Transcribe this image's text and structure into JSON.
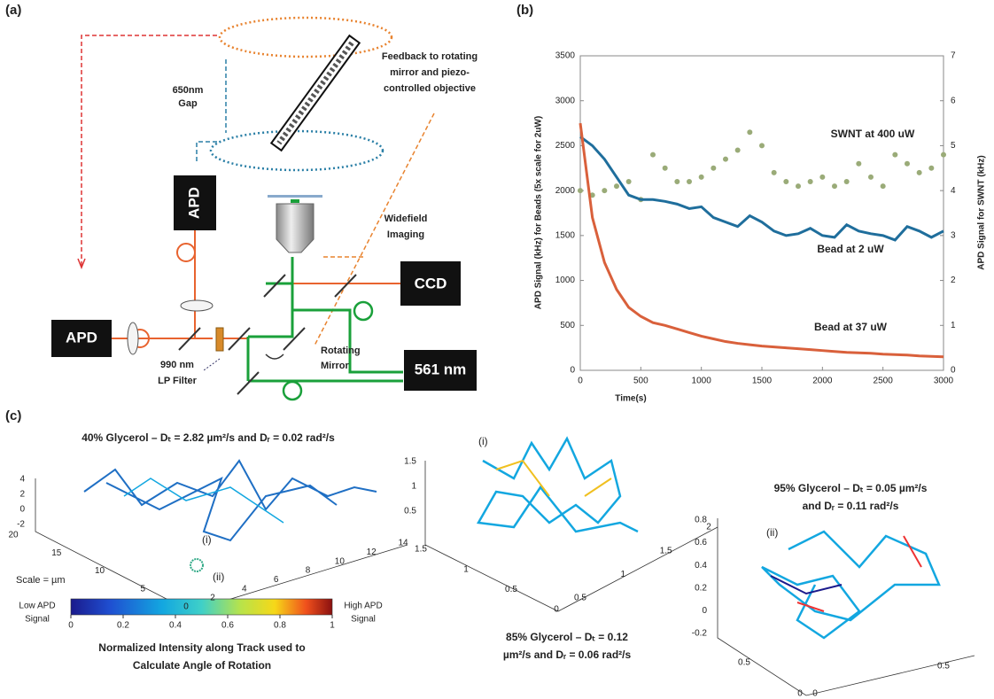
{
  "panels": {
    "a": "(a)",
    "b": "(b)",
    "c": "(c)"
  },
  "diagram": {
    "gap": [
      "650nm",
      "Gap"
    ],
    "feedback": [
      "Feedback to rotating",
      "mirror and piezo-",
      "controlled objective"
    ],
    "apd_top": "APD",
    "apd_left": "APD",
    "widefield": [
      "Widefield",
      "Imaging"
    ],
    "ccd": "CCD",
    "rotating": [
      "Rotating",
      "Mirror"
    ],
    "laser": "561 nm",
    "filter": [
      "990 nm",
      "LP Filter"
    ]
  },
  "chart_data": {
    "type": "line",
    "xlabel": "Time(s)",
    "ylabel": "APD Signal (kHz) for Beads (5x scale for 2uW)",
    "y2label": "APD Signal for SWNT (kHz)",
    "x": [
      0,
      100,
      200,
      300,
      400,
      500,
      600,
      700,
      800,
      900,
      1000,
      1100,
      1200,
      1300,
      1400,
      1500,
      1600,
      1700,
      1800,
      1900,
      2000,
      2100,
      2200,
      2300,
      2400,
      2500,
      2600,
      2700,
      2800,
      2900,
      3000
    ],
    "xlim": [
      0,
      3000
    ],
    "xticks": [
      0,
      500,
      1000,
      1500,
      2000,
      2500,
      3000
    ],
    "ylim": [
      0,
      3500
    ],
    "yticks": [
      0,
      500,
      1000,
      1500,
      2000,
      2500,
      3000,
      3500
    ],
    "y2lim": [
      0,
      7
    ],
    "y2ticks": [
      0,
      1,
      2,
      3,
      4,
      5,
      6,
      7
    ],
    "series": [
      {
        "name": "SWNT at 400 uW",
        "color": "#9aab78",
        "axis": "y2",
        "marker": "dots",
        "values": [
          4.0,
          3.9,
          4.0,
          4.1,
          4.2,
          3.8,
          4.8,
          4.5,
          4.2,
          4.2,
          4.3,
          4.5,
          4.7,
          4.9,
          5.3,
          5.0,
          4.4,
          4.2,
          4.1,
          4.2,
          4.3,
          4.1,
          4.2,
          4.6,
          4.3,
          4.1,
          4.8,
          4.6,
          4.4,
          4.5,
          4.8
        ]
      },
      {
        "name": "Bead at 2 uW",
        "color": "#1f6e9c",
        "values": [
          2600,
          2500,
          2350,
          2150,
          1950,
          1900,
          1900,
          1880,
          1850,
          1800,
          1820,
          1700,
          1650,
          1600,
          1720,
          1650,
          1550,
          1500,
          1520,
          1580,
          1500,
          1480,
          1620,
          1550,
          1520,
          1500,
          1450,
          1600,
          1550,
          1480,
          1550
        ]
      },
      {
        "name": "Bead at 37 uW",
        "color": "#d9603b",
        "values": [
          2750,
          1700,
          1200,
          900,
          700,
          600,
          530,
          500,
          460,
          420,
          380,
          350,
          320,
          300,
          285,
          270,
          260,
          250,
          240,
          230,
          220,
          210,
          200,
          195,
          190,
          180,
          175,
          170,
          160,
          155,
          150
        ]
      }
    ]
  },
  "plots3d": [
    {
      "title": "40% Glycerol – Dₜ = 2.82 µm²/s  and Dᵣ = 0.02 rad²/s",
      "zticks": [
        4,
        2,
        0,
        -2
      ],
      "yticks": [
        20,
        15,
        10,
        5,
        0
      ],
      "xticks": [
        2,
        4,
        6,
        8,
        10,
        12,
        14
      ],
      "marks": [
        "(i)",
        "(ii)"
      ],
      "scale": "Scale = µm"
    },
    {
      "title": [
        "85% Glycerol – Dₜ = 0.12",
        "µm²/s  and Dᵣ = 0.06 rad²/s"
      ],
      "zticks": [
        1.5,
        1,
        0.5
      ],
      "yticks": [
        1.5,
        1,
        0.5,
        0
      ],
      "xticks": [
        0.5,
        1,
        1.5,
        2
      ],
      "marks": [
        "(i)"
      ]
    },
    {
      "title": [
        "95% Glycerol – Dₜ = 0.05 µm²/s",
        "and Dᵣ = 0.11 rad²/s"
      ],
      "zticks": [
        0.8,
        0.6,
        0.4,
        0.2,
        0,
        -0.2
      ],
      "yticks": [
        0.5,
        0
      ],
      "xticks": [
        0,
        0.5
      ],
      "marks": [
        "(ii)"
      ]
    }
  ],
  "colorbar": {
    "ticks": [
      0,
      0.2,
      0.4,
      0.6,
      0.8,
      1
    ],
    "low": [
      "Low APD",
      "Signal"
    ],
    "high": [
      "High APD",
      "Signal"
    ],
    "caption": [
      "Normalized Intensity along Track used to",
      "Calculate Angle of Rotation"
    ]
  }
}
